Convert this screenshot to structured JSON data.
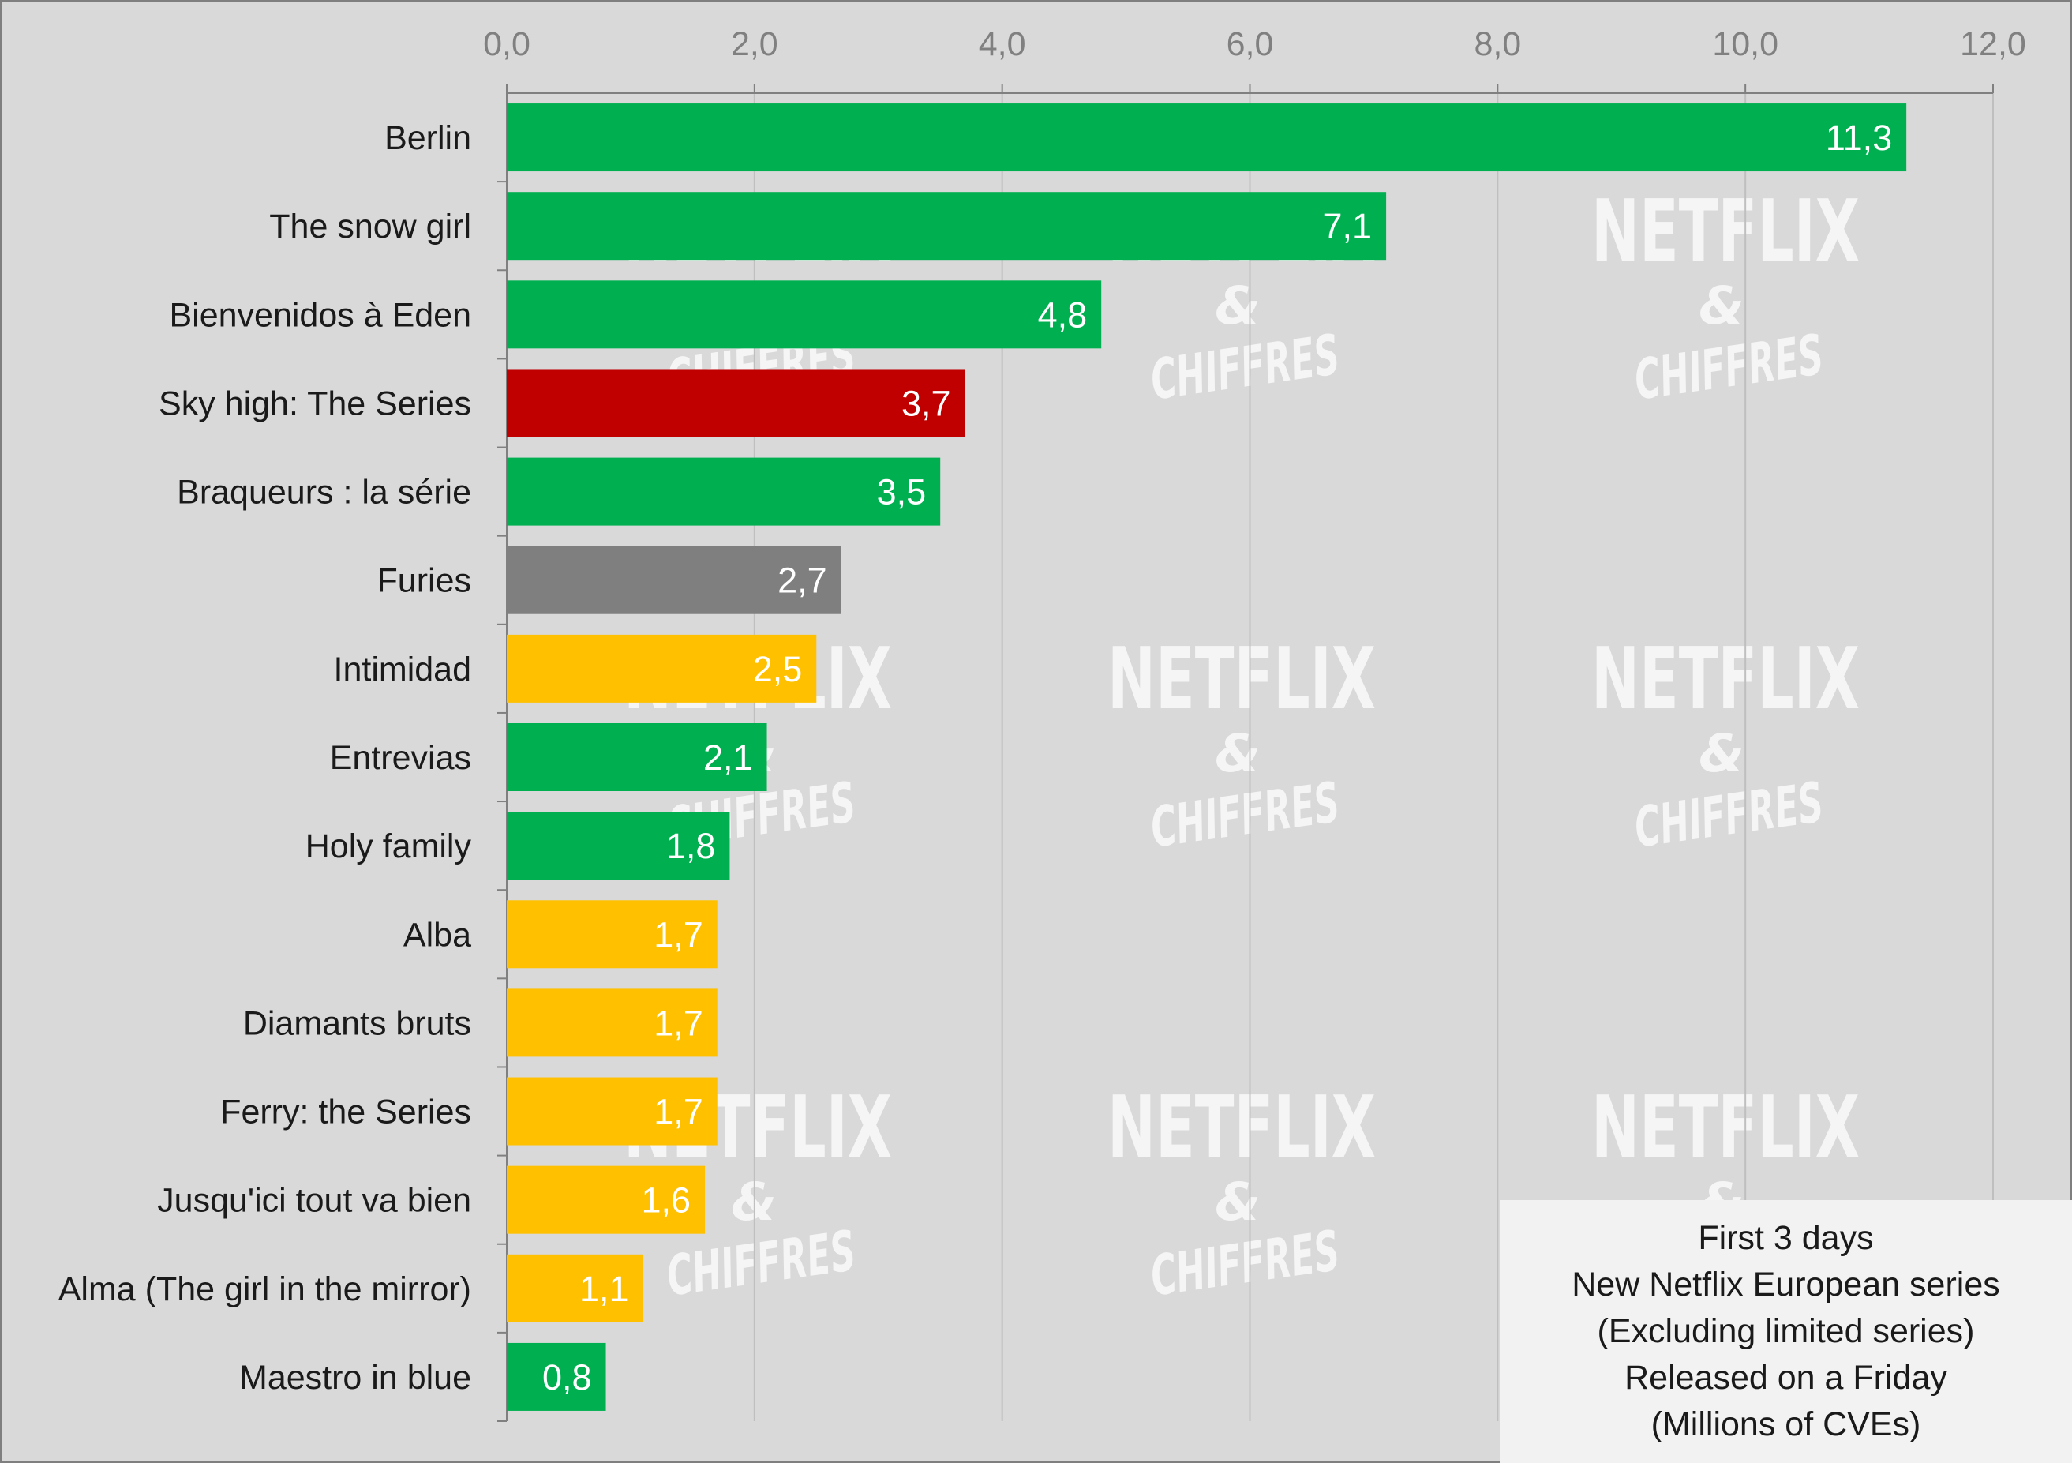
{
  "chart_data": {
    "type": "bar",
    "orientation": "horizontal",
    "categories": [
      "Berlin",
      "The snow girl",
      "Bienvenidos à Eden",
      "Sky high: The Series",
      "Braqueurs : la série",
      "Furies",
      "Intimidad",
      "Entrevias",
      "Holy family",
      "Alba",
      "Diamants bruts",
      "Ferry: the Series",
      "Jusqu'ici tout va bien",
      "Alma (The girl in the mirror)",
      "Maestro in blue"
    ],
    "values": [
      11.3,
      7.1,
      4.8,
      3.7,
      3.5,
      2.7,
      2.5,
      2.1,
      1.8,
      1.7,
      1.7,
      1.7,
      1.6,
      1.1,
      0.8
    ],
    "value_labels": [
      "11,3",
      "7,1",
      "4,8",
      "3,7",
      "3,5",
      "2,7",
      "2,5",
      "2,1",
      "1,8",
      "1,7",
      "1,7",
      "1,7",
      "1,6",
      "1,1",
      "0,8"
    ],
    "bar_colors": [
      "#00b050",
      "#00b050",
      "#00b050",
      "#c00000",
      "#00b050",
      "#7f7f7f",
      "#ffc000",
      "#00b050",
      "#00b050",
      "#ffc000",
      "#ffc000",
      "#ffc000",
      "#ffc000",
      "#ffc000",
      "#00b050"
    ],
    "xlim": [
      0,
      12
    ],
    "ticks": [
      0,
      2,
      4,
      6,
      8,
      10,
      12
    ],
    "tick_labels": [
      "0,0",
      "2,0",
      "4,0",
      "6,0",
      "8,0",
      "10,0",
      "12,0"
    ],
    "axis_position": "top",
    "grid": true,
    "title": "",
    "xlabel": "",
    "ylabel": ""
  },
  "legend_box": {
    "lines": [
      "First 3 days",
      "New Netflix European series",
      "(Excluding limited series)",
      "Released on a Friday",
      "(Millions of CVEs)"
    ]
  },
  "watermark": {
    "brand": "NETFLIX",
    "amp": "&",
    "word": "CHIFFRES"
  },
  "colors": {
    "background": "#d9d9d9",
    "grid": "#bfbfbf",
    "axis": "#808080",
    "tick_label": "#808080",
    "category_label": "#1a1a1a",
    "value_label": "#ffffff",
    "watermark": "#ffffff"
  }
}
